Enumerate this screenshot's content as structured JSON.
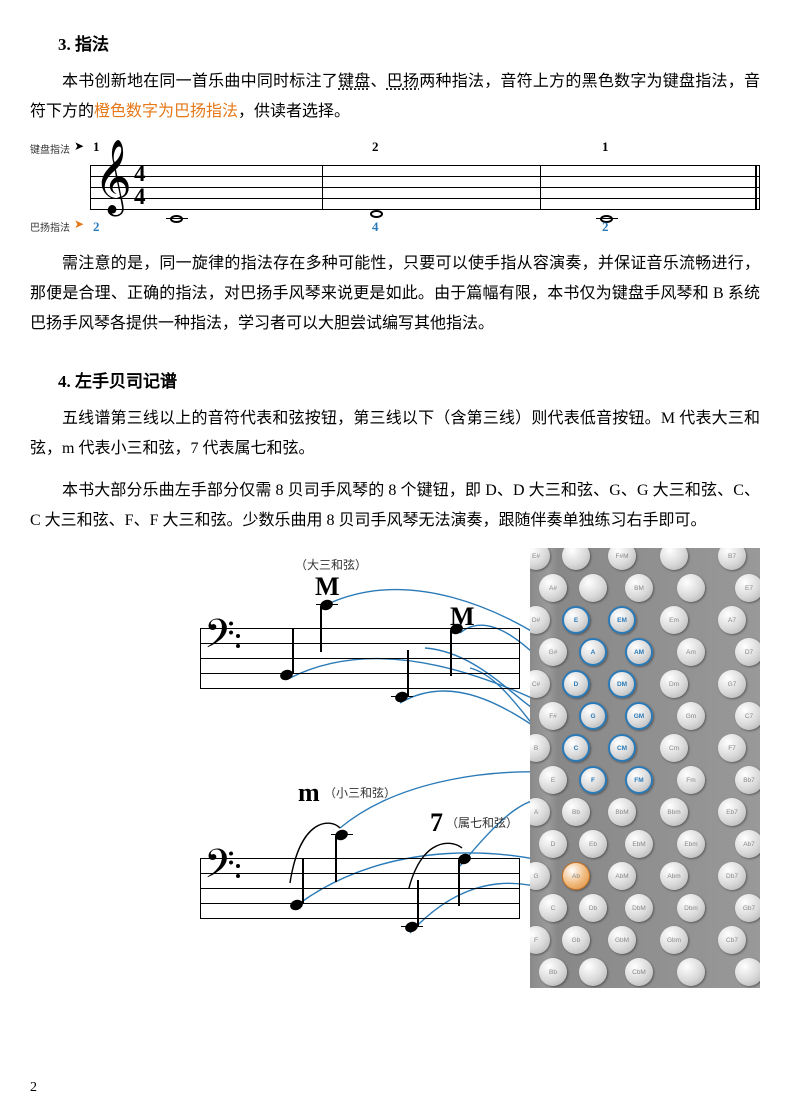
{
  "section3": {
    "header": "3.  指法",
    "p1_a": "本书创新地在同一首乐曲中同时标注了",
    "p1_b_u": "键盘",
    "p1_c": "、",
    "p1_d_u": "巴扬",
    "p1_e": "两种指法，音符上方的黑色数字为键盘指法，音符下方的",
    "p1_f_orange": "橙色数字为巴扬指法",
    "p1_g": "，供读者选择。",
    "label_keyboard": "键盘指法",
    "label_bayang": "巴扬指法",
    "top_fingerings": [
      "1",
      "2",
      "1"
    ],
    "bot_fingerings": [
      "2",
      "4",
      "2"
    ],
    "p2": "需注意的是，同一旋律的指法存在多种可能性，只要可以使手指从容演奏，并保证音乐流畅进行，那便是合理、正确的指法，对巴扬手风琴来说更是如此。由于篇幅有限，本书仅为键盘手风琴和 B 系统巴扬手风琴各提供一种指法，学习者可以大胆尝试编写其他指法。"
  },
  "section4": {
    "header": "4.  左手贝司记谱",
    "p1": "五线谱第三线以上的音符代表和弦按钮，第三线以下（含第三线）则代表低音按钮。M 代表大三和弦，m 代表小三和弦，7 代表属七和弦。",
    "p2": "本书大部分乐曲左手部分仅需 8 贝司手风琴的 8 个键钮，即 D、D 大三和弦、G、G 大三和弦、C、C 大三和弦、F、F 大三和弦。少数乐曲用 8 贝司手风琴无法演奏，跟随伴奏单独练习右手即可。"
  },
  "diagram2": {
    "major_cn": "（大三和弦）",
    "minor_cn": "（小三和弦）",
    "seventh_cn": "（属七和弦）",
    "M1": "M",
    "M2": "M",
    "m": "m",
    "seven": "7",
    "button_labels": [
      [
        "E#",
        "",
        "F#M",
        "",
        "B7"
      ],
      [
        "A#",
        "",
        "BM",
        "",
        "E7"
      ],
      [
        "D#",
        "E",
        "EM",
        "Em",
        "A7"
      ],
      [
        "G#",
        "A",
        "AM",
        "Am",
        "D7"
      ],
      [
        "C#",
        "D",
        "DM",
        "Dm",
        "G7"
      ],
      [
        "F#",
        "G",
        "GM",
        "Gm",
        "C7"
      ],
      [
        "B",
        "C",
        "CM",
        "Cm",
        "F7"
      ],
      [
        "E",
        "F",
        "FM",
        "Fm",
        "Bb7"
      ],
      [
        "A",
        "Bb",
        "BbM",
        "Bbm",
        "Eb7"
      ],
      [
        "D",
        "Eb",
        "EbM",
        "Ebm",
        "Ab7"
      ],
      [
        "G",
        "Ab",
        "AbM",
        "Abm",
        "Db7"
      ],
      [
        "C",
        "Db",
        "DbM",
        "Dbm",
        "Gb7"
      ],
      [
        "F",
        "Gb",
        "GbM",
        "Gbm",
        "Cb7"
      ],
      [
        "Bb",
        "",
        "CbM",
        "",
        ""
      ]
    ],
    "highlight_blue": [
      "E",
      "A",
      "D",
      "G",
      "C",
      "F",
      "EM",
      "AM",
      "DM",
      "GM",
      "CM",
      "FM"
    ],
    "highlight_orange": [
      "Ab"
    ],
    "curve_color": "#2a7ab8"
  },
  "page_number": "2"
}
